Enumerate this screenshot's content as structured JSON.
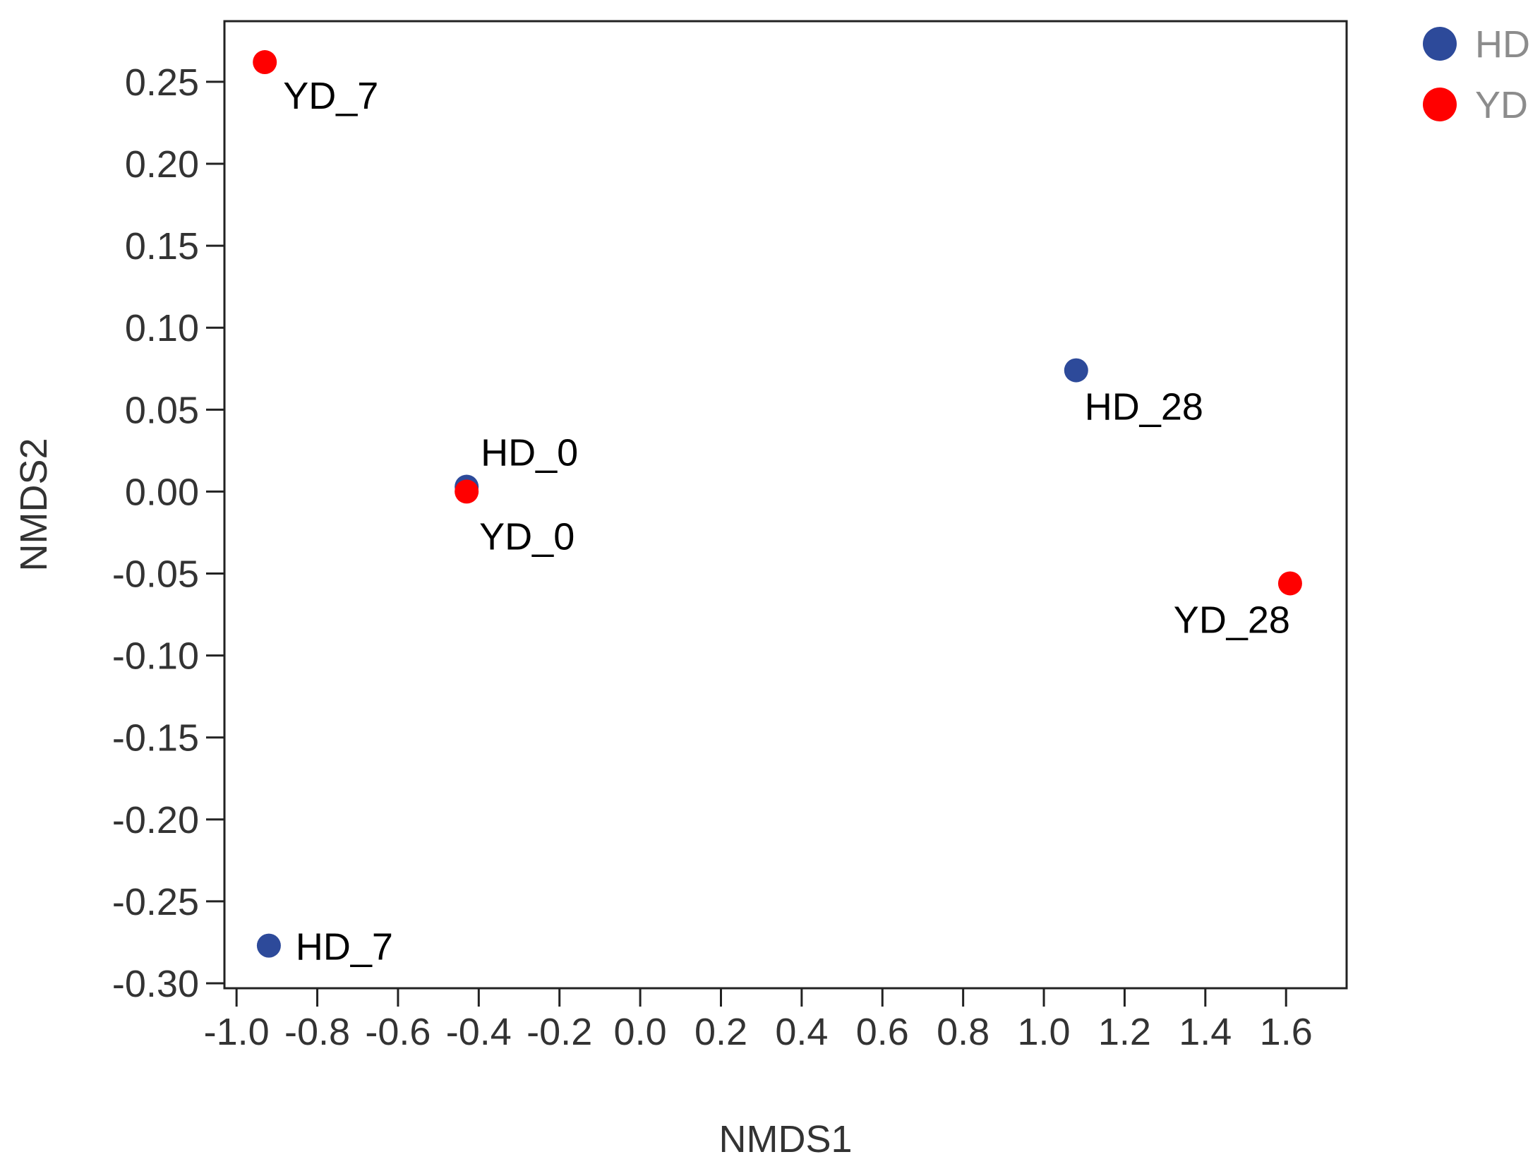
{
  "chart_data": {
    "type": "scatter",
    "title": "",
    "xlabel": "NMDS1",
    "ylabel": "NMDS2",
    "xlim": [
      -1.03,
      1.75
    ],
    "ylim": [
      -0.303,
      0.287
    ],
    "x_ticks": [
      "-1.0",
      "-0.8",
      "-0.6",
      "-0.4",
      "-0.2",
      "0.0",
      "0.2",
      "0.4",
      "0.6",
      "0.8",
      "1.0",
      "1.2",
      "1.4",
      "1.6"
    ],
    "y_ticks": [
      "0.25",
      "0.20",
      "0.15",
      "0.10",
      "0.05",
      "0.00",
      "-0.05",
      "-0.10",
      "-0.15",
      "-0.20",
      "-0.25",
      "-0.30"
    ],
    "grid": false,
    "legend_position": "outside-top-right",
    "series": [
      {
        "name": "HD",
        "color": "#2d4a9a",
        "points": [
          {
            "label": "HD_0",
            "x": -0.43,
            "y": 0.003
          },
          {
            "label": "HD_7",
            "x": -0.92,
            "y": -0.277
          },
          {
            "label": "HD_28",
            "x": 1.08,
            "y": 0.074
          }
        ]
      },
      {
        "name": "YD",
        "color": "#ff0000",
        "points": [
          {
            "label": "YD_0",
            "x": -0.43,
            "y": 0.0
          },
          {
            "label": "YD_7",
            "x": -0.93,
            "y": 0.262
          },
          {
            "label": "YD_28",
            "x": 1.61,
            "y": -0.056
          }
        ]
      }
    ]
  }
}
